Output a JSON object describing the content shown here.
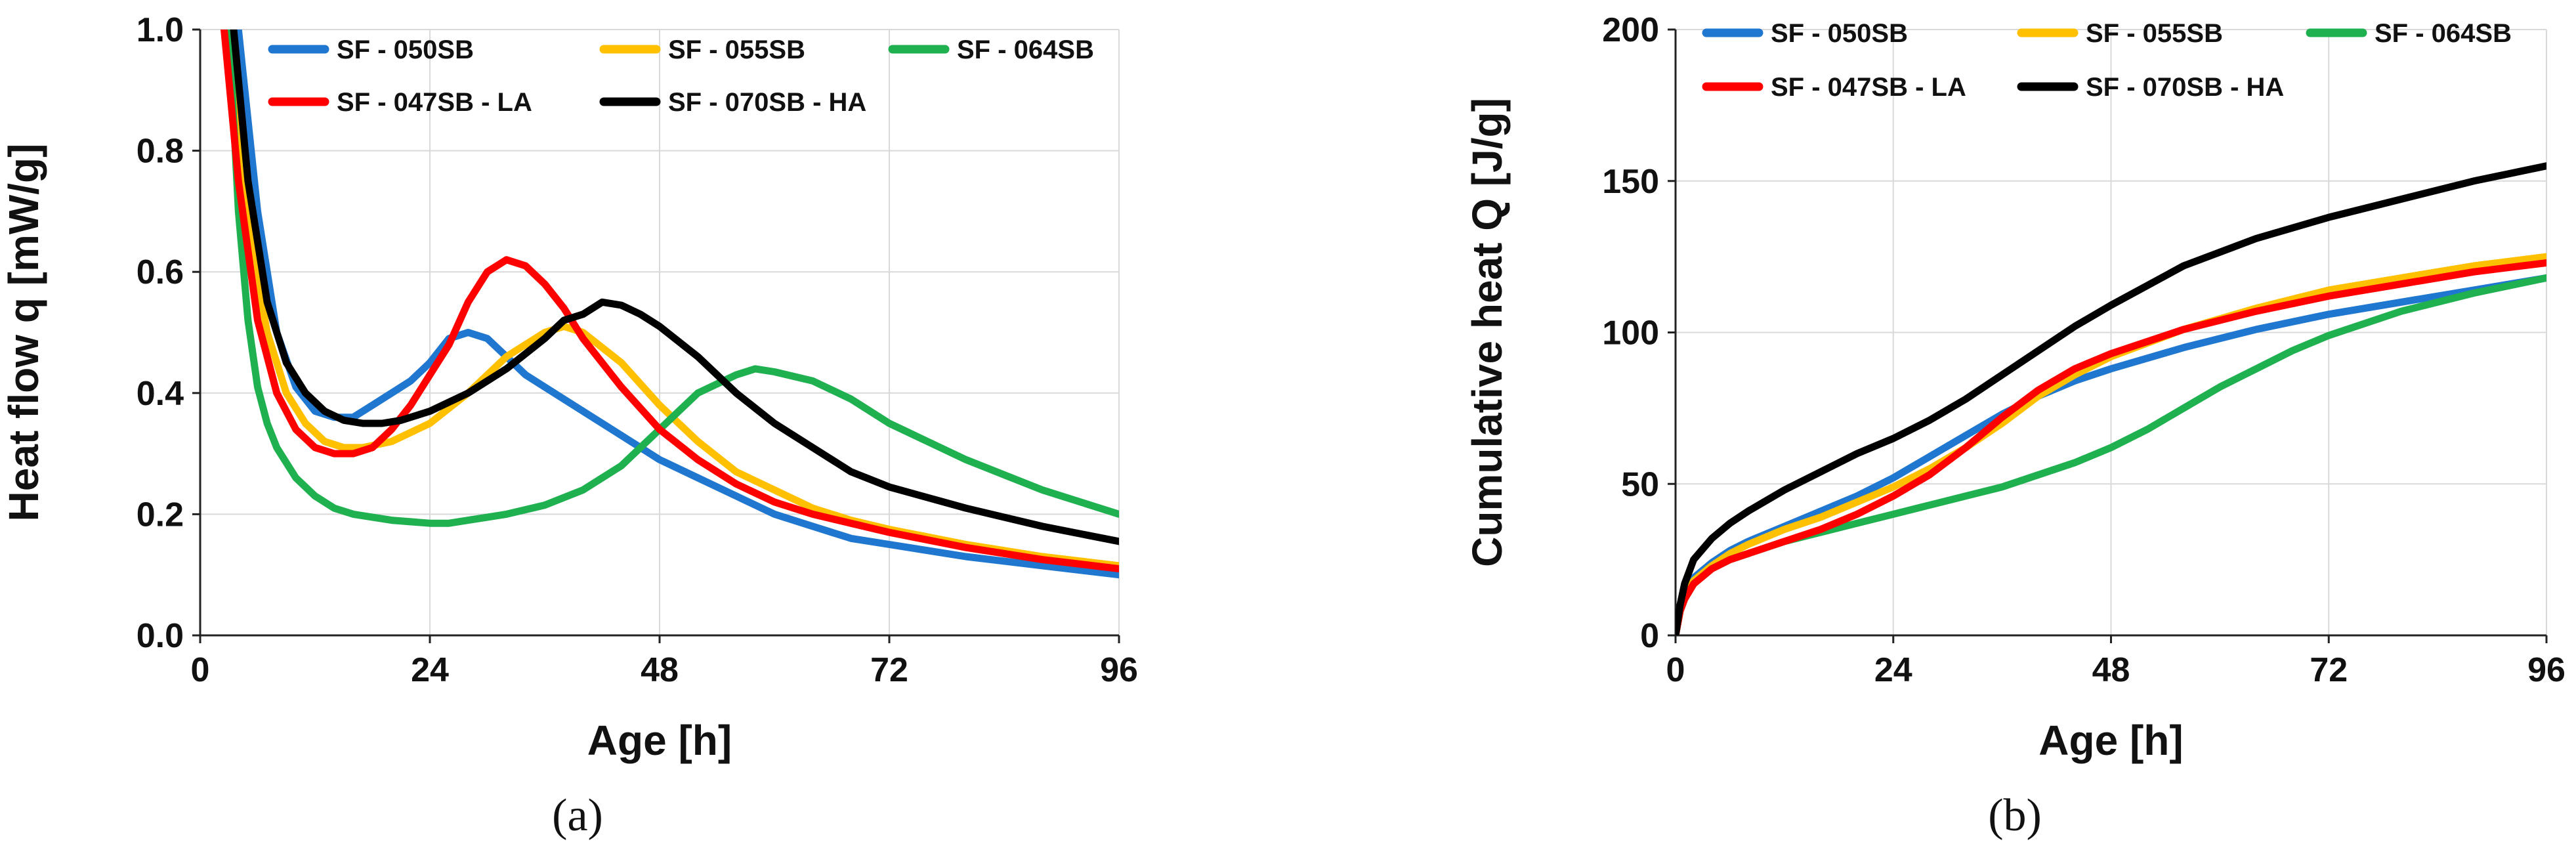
{
  "chart_data": [
    {
      "type": "line",
      "panel_label": "(a)",
      "xlabel": "Age [h]",
      "ylabel": "Heat flow q [mW/g]",
      "xlim": [
        0,
        96
      ],
      "ylim": [
        0,
        1.0
      ],
      "xticks": [
        0,
        24,
        48,
        72,
        96
      ],
      "xtick_labels": [
        "0",
        "24",
        "48",
        "72",
        "96"
      ],
      "yticks": [
        0,
        0.2,
        0.4,
        0.6,
        0.8,
        1.0
      ],
      "ytick_labels": [
        "0.0",
        "0.2",
        "0.4",
        "0.6",
        "0.8",
        "1.0"
      ],
      "grid": true,
      "legend_position": "top",
      "series": [
        {
          "name": "SF - 050SB",
          "color": "#1f77d0",
          "x": [
            4,
            6,
            8,
            10,
            12,
            14,
            16,
            18,
            20,
            22,
            24,
            26,
            28,
            30,
            32,
            34,
            36,
            40,
            44,
            48,
            52,
            56,
            60,
            64,
            68,
            72,
            80,
            88,
            96
          ],
          "y": [
            1.0,
            0.7,
            0.5,
            0.41,
            0.37,
            0.36,
            0.36,
            0.38,
            0.4,
            0.42,
            0.45,
            0.49,
            0.5,
            0.49,
            0.46,
            0.43,
            0.41,
            0.37,
            0.33,
            0.29,
            0.26,
            0.23,
            0.2,
            0.18,
            0.16,
            0.15,
            0.13,
            0.115,
            0.1
          ]
        },
        {
          "name": "SF - 055SB",
          "color": "#ffc000",
          "x": [
            3,
            5,
            7,
            9,
            11,
            13,
            15,
            17,
            20,
            24,
            28,
            32,
            36,
            38,
            40,
            44,
            48,
            52,
            56,
            60,
            64,
            68,
            72,
            80,
            88,
            96
          ],
          "y": [
            1.0,
            0.68,
            0.5,
            0.4,
            0.35,
            0.32,
            0.31,
            0.31,
            0.32,
            0.35,
            0.4,
            0.46,
            0.5,
            0.51,
            0.5,
            0.45,
            0.38,
            0.32,
            0.27,
            0.24,
            0.21,
            0.19,
            0.175,
            0.15,
            0.13,
            0.115
          ]
        },
        {
          "name": "SF - 064SB",
          "color": "#1fb050",
          "x": [
            3,
            4,
            5,
            6,
            7,
            8,
            10,
            12,
            14,
            16,
            20,
            24,
            26,
            28,
            32,
            36,
            40,
            44,
            48,
            52,
            56,
            58,
            60,
            64,
            68,
            72,
            80,
            88,
            96
          ],
          "y": [
            1.0,
            0.7,
            0.52,
            0.41,
            0.35,
            0.31,
            0.26,
            0.23,
            0.21,
            0.2,
            0.19,
            0.185,
            0.185,
            0.19,
            0.2,
            0.215,
            0.24,
            0.28,
            0.34,
            0.4,
            0.43,
            0.44,
            0.435,
            0.42,
            0.39,
            0.35,
            0.29,
            0.24,
            0.2
          ]
        },
        {
          "name": "SF - 047SB - LA",
          "color": "#ff0000",
          "x": [
            2.5,
            4,
            6,
            8,
            10,
            12,
            14,
            16,
            18,
            20,
            22,
            24,
            26,
            28,
            30,
            32,
            34,
            36,
            38,
            40,
            44,
            48,
            52,
            56,
            60,
            64,
            72,
            80,
            88,
            96
          ],
          "y": [
            1.0,
            0.75,
            0.52,
            0.4,
            0.34,
            0.31,
            0.3,
            0.3,
            0.31,
            0.34,
            0.38,
            0.43,
            0.48,
            0.55,
            0.6,
            0.62,
            0.61,
            0.58,
            0.54,
            0.49,
            0.41,
            0.34,
            0.29,
            0.25,
            0.22,
            0.2,
            0.17,
            0.145,
            0.125,
            0.11
          ]
        },
        {
          "name": "SF - 070SB - HA",
          "color": "#000000",
          "x": [
            3.5,
            5,
            7,
            9,
            11,
            13,
            15,
            17,
            19,
            21,
            24,
            28,
            32,
            36,
            38,
            40,
            42,
            44,
            46,
            48,
            52,
            56,
            60,
            64,
            68,
            72,
            80,
            88,
            96
          ],
          "y": [
            1.0,
            0.75,
            0.55,
            0.45,
            0.4,
            0.37,
            0.355,
            0.35,
            0.35,
            0.355,
            0.37,
            0.4,
            0.44,
            0.49,
            0.52,
            0.53,
            0.55,
            0.545,
            0.53,
            0.51,
            0.46,
            0.4,
            0.35,
            0.31,
            0.27,
            0.245,
            0.21,
            0.18,
            0.155
          ]
        }
      ]
    },
    {
      "type": "line",
      "panel_label": "(b)",
      "xlabel": "Age [h]",
      "ylabel": "Cumulative heat Q [J/g]",
      "xlim": [
        0,
        96
      ],
      "ylim": [
        0,
        200
      ],
      "xticks": [
        0,
        24,
        48,
        72,
        96
      ],
      "xtick_labels": [
        "0",
        "24",
        "48",
        "72",
        "96"
      ],
      "yticks": [
        0,
        50,
        100,
        150,
        200
      ],
      "ytick_labels": [
        "0",
        "50",
        "100",
        "150",
        "200"
      ],
      "grid": true,
      "legend_position": "top",
      "series": [
        {
          "name": "SF - 050SB",
          "color": "#1f77d0",
          "x": [
            0,
            0.5,
            1,
            2,
            4,
            6,
            8,
            12,
            16,
            20,
            24,
            28,
            32,
            36,
            40,
            44,
            48,
            56,
            64,
            72,
            80,
            88,
            96
          ],
          "y": [
            0,
            8,
            13,
            19,
            24,
            28,
            31,
            36,
            41,
            46,
            52,
            59,
            66,
            73,
            79,
            84,
            88,
            95,
            101,
            106,
            110,
            114,
            118
          ]
        },
        {
          "name": "SF - 055SB",
          "color": "#ffc000",
          "x": [
            0,
            0.5,
            1,
            2,
            4,
            6,
            8,
            12,
            16,
            20,
            24,
            28,
            32,
            36,
            40,
            44,
            48,
            56,
            64,
            72,
            80,
            88,
            96
          ],
          "y": [
            0,
            8,
            13,
            18,
            23,
            27,
            30,
            35,
            39,
            44,
            49,
            55,
            62,
            70,
            79,
            86,
            92,
            101,
            108,
            114,
            118,
            122,
            125
          ]
        },
        {
          "name": "SF - 064SB",
          "color": "#1fb050",
          "x": [
            0,
            0.5,
            1,
            2,
            4,
            6,
            8,
            12,
            16,
            20,
            24,
            28,
            32,
            36,
            40,
            44,
            48,
            52,
            56,
            60,
            64,
            68,
            72,
            80,
            88,
            96
          ],
          "y": [
            0,
            8,
            12,
            17,
            22,
            25,
            27,
            31,
            34,
            37,
            40,
            43,
            46,
            49,
            53,
            57,
            62,
            68,
            75,
            82,
            88,
            94,
            99,
            107,
            113,
            118
          ]
        },
        {
          "name": "SF - 047SB - LA",
          "color": "#ff0000",
          "x": [
            0,
            0.5,
            1,
            2,
            4,
            6,
            8,
            12,
            16,
            20,
            24,
            28,
            32,
            36,
            40,
            44,
            48,
            56,
            64,
            72,
            80,
            88,
            96
          ],
          "y": [
            0,
            8,
            12,
            17,
            22,
            25,
            27,
            31,
            35,
            40,
            46,
            53,
            62,
            72,
            81,
            88,
            93,
            101,
            107,
            112,
            116,
            120,
            123
          ]
        },
        {
          "name": "SF - 070SB - HA",
          "color": "#000000",
          "x": [
            0,
            0.5,
            1,
            2,
            4,
            6,
            8,
            12,
            16,
            20,
            24,
            28,
            32,
            36,
            40,
            44,
            48,
            56,
            64,
            72,
            80,
            88,
            96
          ],
          "y": [
            0,
            10,
            17,
            25,
            32,
            37,
            41,
            48,
            54,
            60,
            65,
            71,
            78,
            86,
            94,
            102,
            109,
            122,
            131,
            138,
            144,
            150,
            155
          ]
        }
      ]
    }
  ]
}
